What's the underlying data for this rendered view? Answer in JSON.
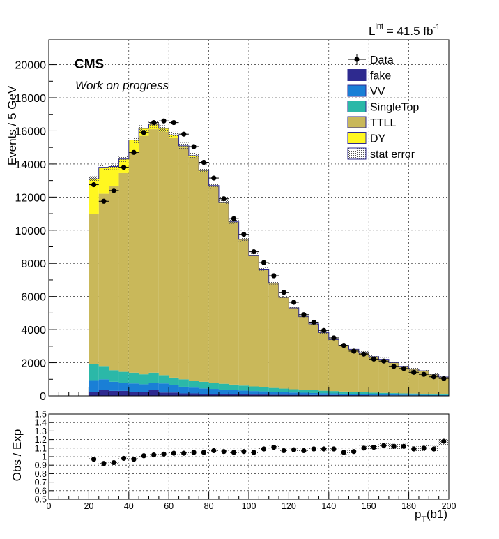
{
  "chart_data": [
    {
      "type": "bar",
      "stacked": true,
      "title_right": "L",
      "lumi_sup": "int",
      "lumi_text": "= 41.5 fb",
      "lumi_exp": "-1",
      "cms_label": "CMS",
      "work_label": "Work on progress",
      "ylabel": "Events / 5 GeV",
      "xlim": [
        0,
        200
      ],
      "ylim": [
        0,
        21500
      ],
      "yticks": [
        0,
        2000,
        4000,
        6000,
        8000,
        10000,
        12000,
        14000,
        16000,
        18000,
        20000
      ],
      "grid": true,
      "legend_position": "top-right",
      "legend": [
        "Data",
        "fake",
        "VV",
        "SingleTop",
        "TTLL",
        "DY",
        "stat error"
      ],
      "colors": {
        "fake": "#2e2a8f",
        "VV": "#1a7fd6",
        "SingleTop": "#2bb8a8",
        "TTLL": "#c9b85a",
        "DY": "#fff720",
        "data": "#000000"
      },
      "bin_edges": [
        20,
        25,
        30,
        35,
        40,
        45,
        50,
        55,
        60,
        65,
        70,
        75,
        80,
        85,
        90,
        95,
        100,
        105,
        110,
        115,
        120,
        125,
        130,
        135,
        140,
        145,
        150,
        155,
        160,
        165,
        170,
        175,
        180,
        185,
        190,
        195,
        200
      ],
      "series": [
        {
          "name": "fake",
          "values": [
            250,
            350,
            300,
            300,
            250,
            250,
            350,
            200,
            200,
            150,
            150,
            120,
            120,
            100,
            100,
            90,
            80,
            80,
            70,
            70,
            60,
            60,
            50,
            50,
            50,
            40,
            40,
            40,
            30,
            30,
            30,
            25,
            25,
            20,
            20,
            20
          ]
        },
        {
          "name": "VV",
          "values": [
            700,
            650,
            550,
            500,
            500,
            450,
            450,
            550,
            450,
            400,
            350,
            330,
            300,
            280,
            250,
            230,
            210,
            190,
            170,
            150,
            140,
            130,
            120,
            110,
            100,
            90,
            80,
            70,
            65,
            60,
            55,
            50,
            45,
            40,
            35,
            30
          ]
        },
        {
          "name": "SingleTop",
          "values": [
            950,
            800,
            700,
            650,
            650,
            600,
            600,
            500,
            450,
            450,
            420,
            400,
            380,
            350,
            330,
            300,
            280,
            260,
            240,
            220,
            200,
            180,
            170,
            150,
            140,
            130,
            120,
            110,
            100,
            90,
            80,
            75,
            70,
            60,
            55,
            50
          ]
        },
        {
          "name": "TTLL",
          "values": [
            9100,
            10400,
            11100,
            12000,
            13300,
            14400,
            14700,
            14700,
            14500,
            14000,
            13500,
            12700,
            11850,
            10900,
            9800,
            8800,
            7900,
            7100,
            6300,
            5500,
            4900,
            4400,
            4000,
            3500,
            3100,
            2760,
            2560,
            2380,
            2160,
            2020,
            1830,
            1620,
            1460,
            1380,
            1190,
            1030
          ]
        },
        {
          "name": "DY",
          "values": [
            2100,
            1600,
            1200,
            850,
            750,
            450,
            300,
            200,
            150,
            100,
            80,
            60,
            50,
            40,
            30,
            30,
            20,
            20,
            20,
            10,
            10,
            10,
            10,
            10,
            10,
            10,
            10,
            10,
            10,
            10,
            10,
            10,
            10,
            10,
            10,
            10
          ]
        }
      ],
      "data_points": [
        12750,
        11750,
        12400,
        13800,
        14700,
        15900,
        16500,
        16600,
        16500,
        15800,
        15050,
        14100,
        13150,
        11900,
        10700,
        9750,
        8700,
        8050,
        7250,
        6250,
        5650,
        4900,
        4450,
        3950,
        3500,
        3050,
        2700,
        2520,
        2220,
        2100,
        1780,
        1650,
        1420,
        1300,
        1150,
        1050
      ]
    },
    {
      "type": "scatter",
      "ylabel": "Obs / Exp",
      "xlabel_main": "p",
      "xlabel_sub": "T",
      "xlabel_tail": "(b1)",
      "xlim": [
        0,
        200
      ],
      "ylim": [
        0.5,
        1.5
      ],
      "yticks": [
        0.5,
        0.6,
        0.7,
        0.8,
        0.9,
        1,
        1.1,
        1.2,
        1.3,
        1.4,
        1.5
      ],
      "xticks": [
        0,
        20,
        40,
        60,
        80,
        100,
        120,
        140,
        160,
        180,
        200
      ],
      "ratio": [
        0.97,
        0.92,
        0.93,
        0.98,
        0.97,
        1.01,
        1.02,
        1.03,
        1.04,
        1.04,
        1.05,
        1.05,
        1.07,
        1.06,
        1.05,
        1.06,
        1.05,
        1.09,
        1.11,
        1.07,
        1.08,
        1.07,
        1.09,
        1.09,
        1.09,
        1.05,
        1.06,
        1.1,
        1.11,
        1.13,
        1.12,
        1.12,
        1.09,
        1.1,
        1.09,
        1.18
      ],
      "ratio_err": [
        0.01,
        0.01,
        0.01,
        0.01,
        0.01,
        0.01,
        0.01,
        0.01,
        0.01,
        0.01,
        0.01,
        0.01,
        0.01,
        0.01,
        0.01,
        0.01,
        0.01,
        0.015,
        0.015,
        0.015,
        0.015,
        0.015,
        0.015,
        0.02,
        0.02,
        0.02,
        0.02,
        0.025,
        0.025,
        0.025,
        0.03,
        0.03,
        0.03,
        0.035,
        0.035,
        0.04
      ]
    }
  ]
}
